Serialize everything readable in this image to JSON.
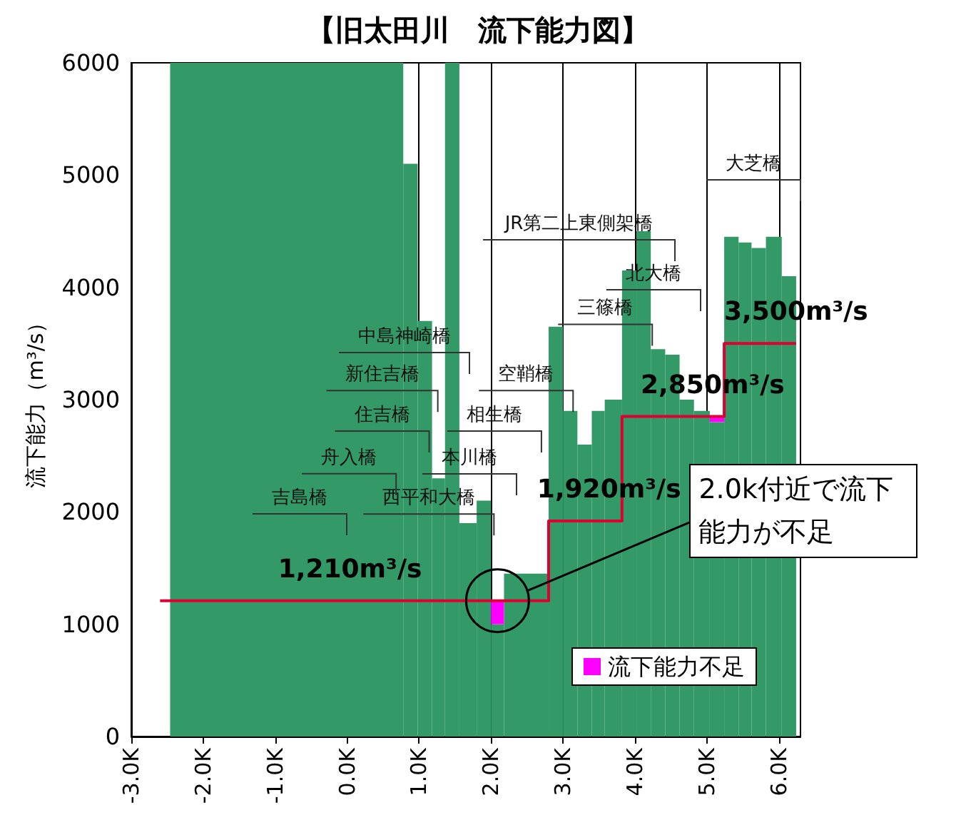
{
  "chart_data": {
    "type": "histogram",
    "title": "【旧太田川　流下能力図】",
    "ylabel": "流下能力（m³/s）",
    "xlim": [
      -3.0,
      6.3
    ],
    "xticks": [
      {
        "value": -3,
        "label": "-3.0K"
      },
      {
        "value": -2,
        "label": "-2.0K"
      },
      {
        "value": -1,
        "label": "-1.0K"
      },
      {
        "value": 0,
        "label": "0.0K"
      },
      {
        "value": 1,
        "label": "1.0K"
      },
      {
        "value": 2,
        "label": "2.0K"
      },
      {
        "value": 3,
        "label": "3.0K"
      },
      {
        "value": 4,
        "label": "4.0K"
      },
      {
        "value": 5,
        "label": "5.0K"
      },
      {
        "value": 6,
        "label": "6.0K"
      }
    ],
    "ylim": [
      0,
      6000
    ],
    "yticks": [
      0,
      1000,
      2000,
      3000,
      4000,
      5000,
      6000
    ],
    "grid": "x",
    "legend": "bottom right",
    "series": [
      {
        "color": "#339966",
        "bins": [
          -2.46,
          0.78,
          0.98,
          1.18,
          1.36,
          1.56,
          1.8,
          2.0,
          2.18,
          2.8,
          3.0,
          3.2,
          3.4,
          3.58,
          3.82,
          4.02,
          4.22,
          4.42,
          4.62,
          4.82,
          5.04,
          5.24,
          5.44,
          5.62,
          5.82,
          6.04,
          6.24
        ],
        "values": [
          6000,
          5100,
          3700,
          2300,
          6000,
          1900,
          2100,
          1000,
          1450,
          3650,
          2900,
          2600,
          2900,
          3000,
          4150,
          4500,
          3450,
          3400,
          3000,
          2900,
          2800,
          4450,
          4400,
          4350,
          4450,
          4100
        ]
      },
      {
        "type": "step",
        "color": "#dd0033",
        "x": [
          -2.6,
          0.04,
          2.8,
          3.64,
          3.82,
          5.08,
          5.24,
          6.24
        ],
        "values": [
          1210,
          1210,
          1920,
          1920,
          2850,
          2850,
          3500,
          3500
        ],
        "value_labels": [
          null,
          "1,210m³/s",
          null,
          "1,920m³/s",
          null,
          "2,850m³/s",
          null,
          "3,500m³/s"
        ]
      },
      {
        "type": "bar",
        "name": "流下能力不足",
        "color": "#ff00ff",
        "x": [
          2.09,
          5.14
        ],
        "base": [
          1000,
          2800
        ],
        "values": [
          210,
          50
        ]
      }
    ],
    "annotations": [
      "吉島橋",
      {
        "text": "西平和大橋",
        "x": 2.04,
        "y": 1790
      },
      {
        "text": "舟入橋",
        "x": 0.68,
        "y": 2150
      },
      "本川橋",
      {
        "text": "住吉橋",
        "x": 1.14,
        "y": 2530
      },
      {
        "text": "相生橋",
        "x": 2.7,
        "y": 2530
      },
      {
        "text": "新住吉橋",
        "x": 1.26,
        "y": 2890
      },
      {
        "text": "空鞘橋",
        "x": 3.14,
        "y": 2890
      },
      "中島神崎橋",
      {
        "text": "三篠橋",
        "x": 4.24,
        "y": 3480
      },
      "北大橋",
      "JR第二上東側架橋",
      "大芝橋",
      "2.0k付近で流下能力が不足"
    ]
  }
}
